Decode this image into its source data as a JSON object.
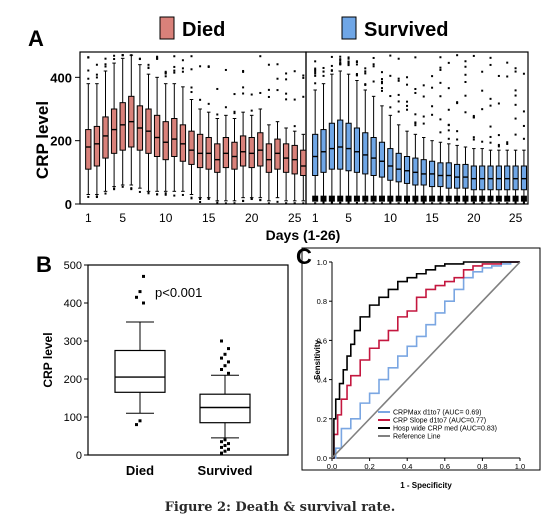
{
  "figure": {
    "caption": "Figure 2: Death & survival rate.",
    "colors": {
      "died": "#d9817a",
      "survived": "#6fa6e6",
      "roc_max": "#7aa6e2",
      "roc_slope": "#c4173f",
      "roc_hosp": "#000000",
      "roc_ref": "#808080"
    }
  },
  "chart_data": [
    {
      "panel": "A",
      "type": "boxplot",
      "legend": [
        "Died",
        "Survived"
      ],
      "legend_position": "top",
      "ylabel": "CRP level",
      "xlabel": "Days (1-26)",
      "ylim": [
        0,
        480
      ],
      "yticks": [
        0,
        200,
        400
      ],
      "xticks": [
        1,
        5,
        10,
        15,
        20,
        25
      ],
      "series": [
        {
          "name": "Died",
          "days": [
            1,
            2,
            3,
            4,
            5,
            6,
            7,
            8,
            9,
            10,
            11,
            12,
            13,
            14,
            15,
            16,
            17,
            18,
            19,
            20,
            21,
            22,
            23,
            24,
            25,
            26
          ],
          "q1": [
            110,
            120,
            145,
            160,
            170,
            180,
            170,
            160,
            150,
            140,
            150,
            135,
            125,
            115,
            110,
            100,
            115,
            110,
            120,
            115,
            120,
            100,
            110,
            100,
            95,
            90
          ],
          "median": [
            180,
            190,
            215,
            235,
            250,
            260,
            240,
            230,
            210,
            195,
            205,
            190,
            170,
            160,
            160,
            140,
            160,
            150,
            165,
            160,
            170,
            140,
            160,
            145,
            140,
            120
          ],
          "q3": [
            235,
            245,
            275,
            300,
            320,
            340,
            310,
            300,
            280,
            260,
            270,
            250,
            230,
            220,
            210,
            190,
            210,
            195,
            215,
            210,
            225,
            190,
            205,
            190,
            185,
            170
          ],
          "whisker_low": [
            30,
            30,
            40,
            55,
            60,
            60,
            50,
            40,
            40,
            40,
            40,
            40,
            30,
            20,
            20,
            10,
            10,
            10,
            20,
            20,
            20,
            10,
            20,
            10,
            10,
            10
          ],
          "whisker_high": [
            380,
            380,
            420,
            445,
            460,
            470,
            440,
            410,
            400,
            380,
            380,
            370,
            330,
            300,
            290,
            270,
            280,
            270,
            290,
            280,
            300,
            250,
            260,
            240,
            230,
            220
          ]
        },
        {
          "name": "Survived",
          "days": [
            1,
            2,
            3,
            4,
            5,
            6,
            7,
            8,
            9,
            10,
            11,
            12,
            13,
            14,
            15,
            16,
            17,
            18,
            19,
            20,
            21,
            22,
            23,
            24,
            25,
            26
          ],
          "q1": [
            90,
            100,
            110,
            110,
            105,
            100,
            95,
            90,
            85,
            75,
            70,
            65,
            60,
            60,
            55,
            55,
            50,
            50,
            50,
            45,
            45,
            45,
            45,
            45,
            45,
            45
          ],
          "median": [
            150,
            165,
            175,
            180,
            175,
            165,
            155,
            145,
            135,
            120,
            110,
            105,
            100,
            95,
            95,
            90,
            90,
            85,
            85,
            80,
            80,
            80,
            80,
            80,
            80,
            80
          ],
          "q3": [
            220,
            235,
            255,
            265,
            255,
            240,
            225,
            210,
            195,
            175,
            160,
            150,
            145,
            140,
            135,
            130,
            130,
            125,
            125,
            120,
            120,
            120,
            120,
            120,
            120,
            120
          ],
          "whisker_low": [
            10,
            10,
            10,
            10,
            10,
            10,
            10,
            10,
            10,
            10,
            10,
            10,
            10,
            10,
            10,
            10,
            10,
            10,
            10,
            10,
            10,
            10,
            10,
            10,
            10,
            10
          ],
          "whisker_high": [
            360,
            380,
            410,
            420,
            410,
            390,
            360,
            340,
            310,
            280,
            250,
            230,
            220,
            210,
            200,
            195,
            190,
            185,
            180,
            175,
            175,
            170,
            170,
            170,
            170,
            170
          ]
        }
      ]
    },
    {
      "panel": "B",
      "type": "boxplot",
      "categories": [
        "Died",
        "Survived"
      ],
      "ylabel": "CRP level",
      "ylim": [
        0,
        500
      ],
      "yticks": [
        0,
        100,
        200,
        300,
        400,
        500
      ],
      "annotation": "p<0.001",
      "boxes": [
        {
          "name": "Died",
          "whisker_low": 110,
          "q1": 165,
          "median": 205,
          "q3": 275,
          "whisker_high": 350,
          "outliers": [
            80,
            90,
            400,
            415,
            430,
            470
          ]
        },
        {
          "name": "Survived",
          "whisker_low": 45,
          "q1": 85,
          "median": 125,
          "q3": 160,
          "whisker_high": 210,
          "outliers": [
            5,
            10,
            15,
            20,
            25,
            30,
            35,
            40,
            215,
            225,
            235,
            245,
            255,
            265,
            280,
            300
          ]
        }
      ]
    },
    {
      "panel": "C",
      "type": "line",
      "xlabel": "1 - Specificity",
      "ylabel": "Sensitivity",
      "xlim": [
        0,
        1
      ],
      "ylim": [
        0,
        1
      ],
      "xticks": [
        0.0,
        0.2,
        0.4,
        0.6,
        0.8,
        1.0
      ],
      "yticks": [
        0.0,
        0.2,
        0.4,
        0.6,
        0.8,
        1.0
      ],
      "legend_position": "bottom-right",
      "series": [
        {
          "name": "CRPMax d1to7 (AUC= 0.69)",
          "x": [
            0,
            0.02,
            0.05,
            0.1,
            0.15,
            0.2,
            0.25,
            0.3,
            0.35,
            0.4,
            0.45,
            0.5,
            0.55,
            0.6,
            0.65,
            0.7,
            0.75,
            0.8,
            0.85,
            0.9,
            0.95,
            1.0
          ],
          "y": [
            0,
            0.05,
            0.15,
            0.2,
            0.28,
            0.33,
            0.4,
            0.46,
            0.52,
            0.57,
            0.62,
            0.68,
            0.74,
            0.8,
            0.86,
            0.92,
            0.95,
            0.97,
            0.98,
            0.99,
            1.0,
            1.0
          ]
        },
        {
          "name": "CRP Slope d1to7 (AUC=0.77)",
          "x": [
            0,
            0.01,
            0.03,
            0.05,
            0.08,
            0.1,
            0.15,
            0.2,
            0.25,
            0.3,
            0.35,
            0.4,
            0.45,
            0.5,
            0.55,
            0.6,
            0.65,
            0.7,
            0.75,
            0.8,
            0.9,
            1.0
          ],
          "y": [
            0,
            0.12,
            0.22,
            0.3,
            0.37,
            0.42,
            0.5,
            0.56,
            0.6,
            0.65,
            0.72,
            0.75,
            0.82,
            0.86,
            0.88,
            0.9,
            0.92,
            0.96,
            0.98,
            0.99,
            1.0,
            1.0
          ]
        },
        {
          "name": "Hosp wide CRP med (AUC=0.83)",
          "x": [
            0,
            0.01,
            0.02,
            0.04,
            0.06,
            0.08,
            0.1,
            0.12,
            0.15,
            0.2,
            0.25,
            0.3,
            0.35,
            0.4,
            0.45,
            0.5,
            0.55,
            0.6,
            0.65,
            0.7,
            0.8,
            0.9,
            1.0
          ],
          "y": [
            0,
            0.2,
            0.3,
            0.38,
            0.45,
            0.52,
            0.58,
            0.65,
            0.72,
            0.78,
            0.82,
            0.86,
            0.9,
            0.92,
            0.94,
            0.96,
            0.98,
            0.99,
            0.99,
            1.0,
            1.0,
            1.0,
            1.0
          ]
        },
        {
          "name": "Reference Line",
          "x": [
            0,
            1
          ],
          "y": [
            0,
            1
          ]
        }
      ]
    }
  ]
}
